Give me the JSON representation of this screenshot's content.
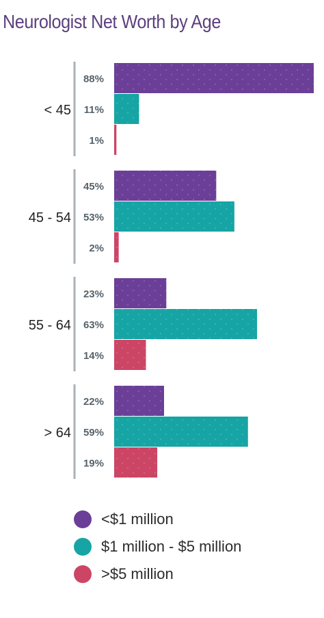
{
  "chart_data": {
    "type": "bar",
    "orientation": "horizontal",
    "title": "Neurologist Net Worth by Age",
    "categories": [
      "< 45",
      "45 - 54",
      "55 - 64",
      "> 64"
    ],
    "series": [
      {
        "name": "<$1 million",
        "color": "#6b3f97",
        "values": [
          88,
          45,
          23,
          22
        ]
      },
      {
        "name": "$1 million - $5 million",
        "color": "#17a4a4",
        "values": [
          11,
          53,
          63,
          59
        ]
      },
      {
        "name": ">$5 million",
        "color": "#cc4564",
        "values": [
          1,
          2,
          14,
          19
        ]
      }
    ],
    "value_labels": [
      [
        "88%",
        "11%",
        "1%"
      ],
      [
        "45%",
        "53%",
        "2%"
      ],
      [
        "23%",
        "63%",
        "14%"
      ],
      [
        "22%",
        "59%",
        "19%"
      ]
    ],
    "xlim": [
      0,
      88
    ],
    "legend_position": "bottom",
    "grid": false
  }
}
